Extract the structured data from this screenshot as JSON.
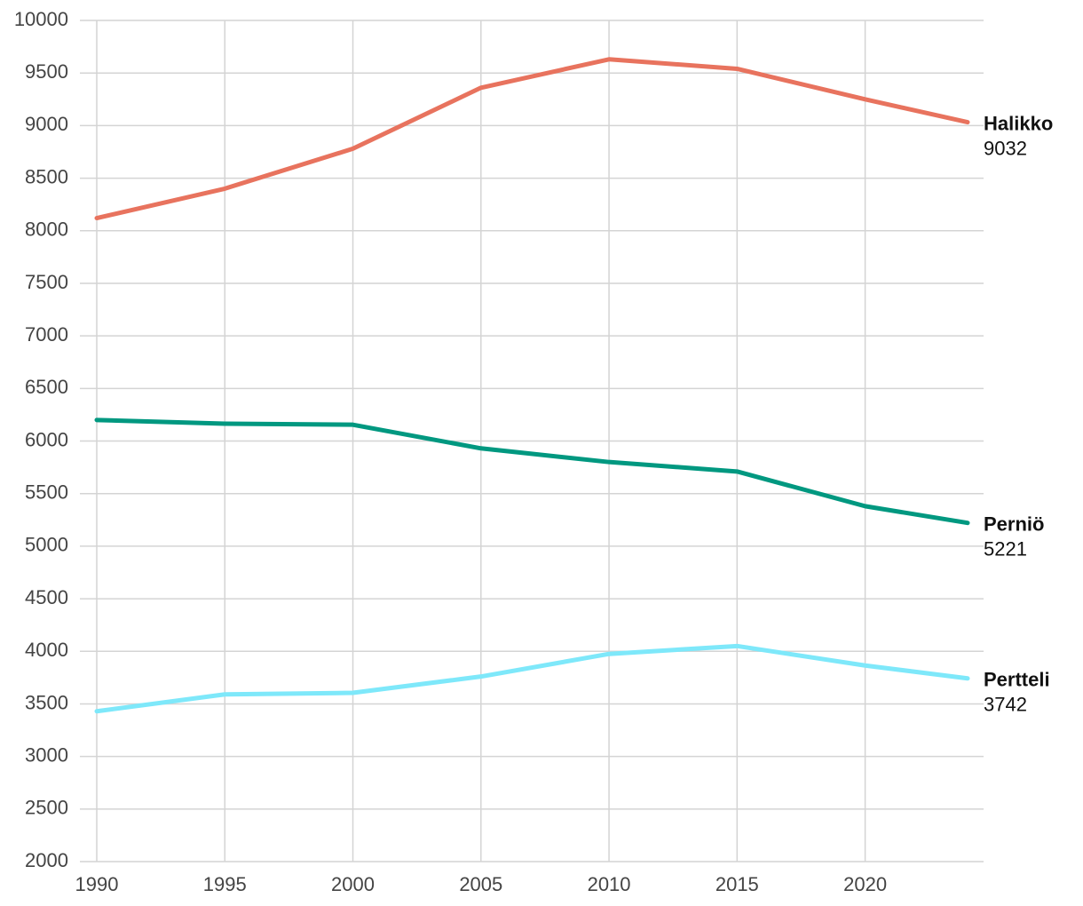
{
  "chart_data": {
    "type": "line",
    "x": [
      1990,
      1995,
      2000,
      2005,
      2010,
      2015,
      2020,
      2024
    ],
    "series": [
      {
        "name": "Halikko",
        "color": "#e8735e",
        "values": [
          8120,
          8400,
          8780,
          9360,
          9630,
          9540,
          9250,
          9032
        ]
      },
      {
        "name": "Perniö",
        "color": "#009880",
        "values": [
          6200,
          6165,
          6155,
          5930,
          5800,
          5710,
          5380,
          5221
        ]
      },
      {
        "name": "Pertteli",
        "color": "#7ee8fa",
        "values": [
          3430,
          3590,
          3605,
          3760,
          3975,
          4050,
          3865,
          3742
        ]
      }
    ],
    "xlim": [
      1990,
      2024
    ],
    "xticks": [
      1990,
      1995,
      2000,
      2005,
      2010,
      2015,
      2020
    ],
    "ylim": [
      2000,
      10000
    ],
    "yticks": [
      2000,
      2500,
      3000,
      3500,
      4000,
      4500,
      5000,
      5500,
      6000,
      6500,
      7000,
      7500,
      8000,
      8500,
      9000,
      9500,
      10000
    ],
    "grid": true
  }
}
